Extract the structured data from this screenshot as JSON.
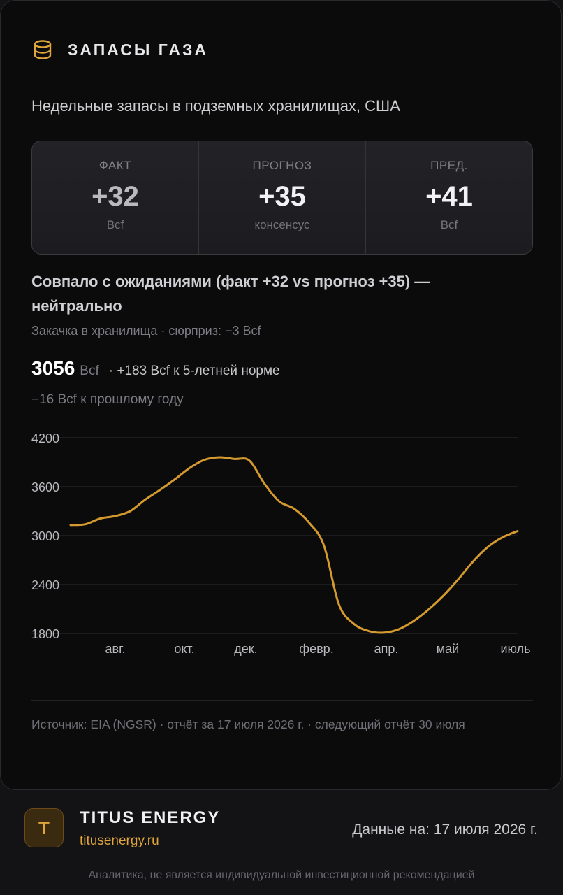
{
  "header": {
    "title": "ЗАПАСЫ ГАЗА",
    "icon": "database-icon"
  },
  "subtitle": "Недельные запасы в подземных хранилищах, США",
  "stats": [
    {
      "label": "ФАКТ",
      "value": "+32",
      "unit": "Bcf"
    },
    {
      "label": "ПРОГНОЗ",
      "value": "+35",
      "unit": "консенсус"
    },
    {
      "label": "ПРЕД.",
      "value": "+41",
      "unit": "Bcf"
    }
  ],
  "verdict": "Совпало с ожиданиями (факт +32 vs прогноз +35) — нейтрально",
  "detail": "Закачка в хранилища · сюрприз: −3 Bcf",
  "level": {
    "value": "3056",
    "unit": "Bcf",
    "vs_norm": "· +183 Bcf к 5-летней норме"
  },
  "yoy": "−16 Bcf к прошлому году",
  "chart_data": {
    "type": "line",
    "title": "",
    "xlabel": "",
    "ylabel": "",
    "y_tick_labels": [
      "4200",
      "3600",
      "3000",
      "2400",
      "1800"
    ],
    "x_tick_labels": [
      "авг.",
      "окт.",
      "дек.",
      "февр.",
      "апр.",
      "май",
      "июль"
    ],
    "ylim": [
      1800,
      4200
    ],
    "grid": true,
    "color": "#d59a2e",
    "series": [
      {
        "values": [
          3130,
          3140,
          3210,
          3240,
          3300,
          3440,
          3560,
          3690,
          3830,
          3930,
          3960,
          3940,
          3920,
          3640,
          3420,
          3330,
          3160,
          2880,
          2160,
          1920,
          1830,
          1810,
          1850,
          1950,
          2090,
          2260,
          2460,
          2680,
          2860,
          2980,
          3056
        ]
      }
    ]
  },
  "source": "Источник: EIA (NGSR) · отчёт за 17 июля 2026 г. · следующий отчёт 30 июля",
  "brand": {
    "initial": "T",
    "name": "TITUS ENERGY",
    "site": "titusenergy.ru"
  },
  "as_of": "Данные на: 17 июля 2026 г.",
  "disclaimer": "Аналитика, не является индивидуальной инвестиционной рекомендацией",
  "colors": {
    "accent": "#e0a53b",
    "line": "#d59a2e",
    "card_bg": "#0b0b0c",
    "page_bg": "#131316"
  }
}
